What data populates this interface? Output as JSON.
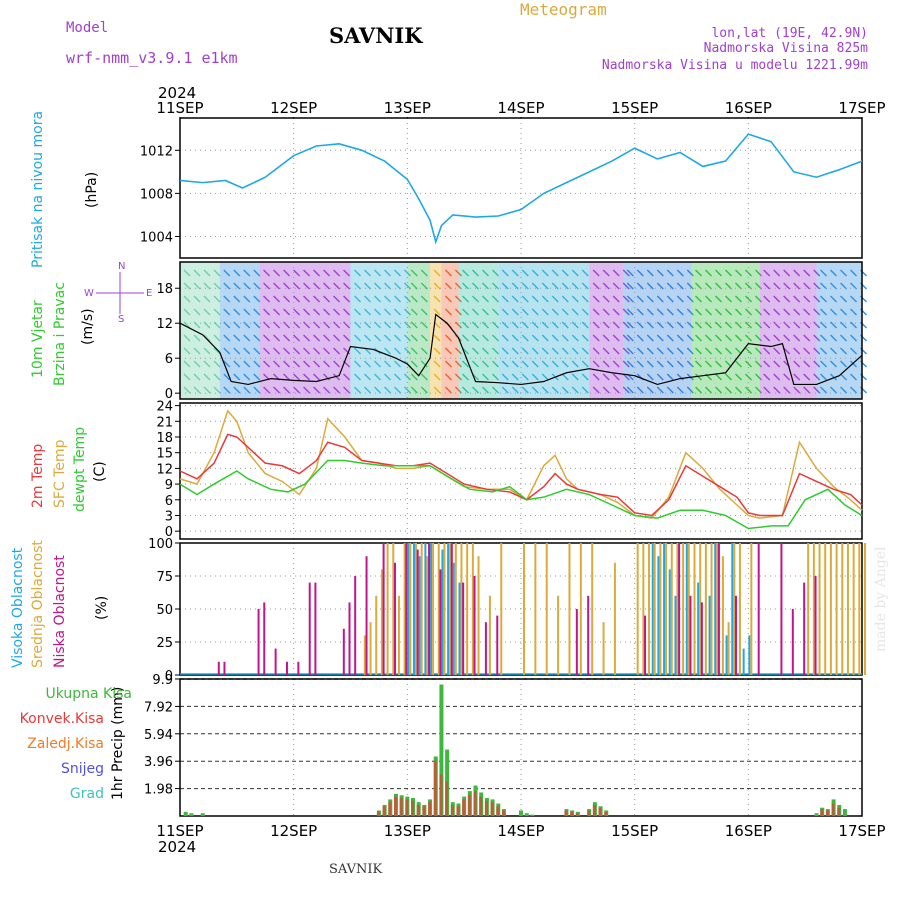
{
  "header": {
    "model_label": "Model",
    "model_name": "wrf-nmm_v3.9.1 e1km",
    "station": "SAVNIK",
    "product": "Meteogram",
    "lonlat": "lon,lat (19E, 42.9N)",
    "elevation": "Nadmorska Visina 825m",
    "model_elevation": "Nadmorska Visina u modelu 1221.99m"
  },
  "footer": {
    "station": "SAVNIK"
  },
  "watermark": "made by Angel",
  "colors": {
    "pressure": "#1fa8e6",
    "temp2m": "#e83a3a",
    "sfc": "#dcaa3c",
    "dewpt": "#2ecc2e",
    "high": "#1fa8e6",
    "mid": "#dcaa3c",
    "low": "#c0158c",
    "total": "#3cb83c",
    "conv": "#e83a3a",
    "frozen": "#f07a28",
    "snow": "#5050e0",
    "grad": "#40c0c0",
    "purple": "#a040d0"
  },
  "time_axis": {
    "year": "2024",
    "ticks": [
      "11SEP",
      "12SEP",
      "13SEP",
      "14SEP",
      "15SEP",
      "16SEP",
      "17SEP"
    ]
  },
  "panels": {
    "pressure": {
      "ylabel": "Pritisak na nivou mora",
      "unit": "(hPa)"
    },
    "wind": {
      "label1": "10m Vjetar",
      "label2": "Brzina i Pravac",
      "unit": "(m/s)",
      "compass": {
        "n": "N",
        "s": "S",
        "e": "E",
        "w": "W"
      }
    },
    "temp": {
      "l1": "2m Temp",
      "l2": "SFC Temp",
      "l3": "dewpt Temp",
      "unit": "(C)"
    },
    "cloud": {
      "l1": "Visoka Oblacnost",
      "l2": "Srednja Oblacnost",
      "l3": "Niska Oblacnost",
      "unit": "(%)"
    },
    "precip": {
      "ylabel": "1hr Precip (mm)",
      "legend": [
        "Ukupna Kisa",
        "Konvek.Kisa",
        "Zaledj.Kisa",
        "Snijeg",
        "Grad"
      ]
    }
  },
  "chart_data": [
    {
      "type": "line",
      "panel": "pressure",
      "x_range_days": [
        0,
        6
      ],
      "ylim": [
        1002,
        1015
      ],
      "yticks": [
        1004,
        1008,
        1012
      ],
      "series": [
        {
          "name": "Pritisak na nivou mora",
          "x": [
            0,
            0.2,
            0.4,
            0.55,
            0.75,
            1.0,
            1.2,
            1.4,
            1.6,
            1.8,
            2.0,
            2.1,
            2.2,
            2.25,
            2.3,
            2.4,
            2.6,
            2.8,
            3.0,
            3.2,
            3.4,
            3.6,
            3.8,
            4.0,
            4.2,
            4.4,
            4.6,
            4.8,
            5.0,
            5.2,
            5.4,
            5.6,
            5.8,
            6.0
          ],
          "values": [
            1009.2,
            1009.0,
            1009.2,
            1008.5,
            1009.5,
            1011.5,
            1012.4,
            1012.6,
            1012.0,
            1011.0,
            1009.3,
            1007.5,
            1005.5,
            1003.5,
            1005.0,
            1006.0,
            1005.8,
            1005.9,
            1006.5,
            1008.0,
            1009.0,
            1010.0,
            1011.0,
            1012.2,
            1011.2,
            1011.8,
            1010.5,
            1011.0,
            1013.5,
            1012.8,
            1010.0,
            1009.5,
            1010.2,
            1011.0
          ]
        }
      ]
    },
    {
      "type": "line",
      "panel": "wind",
      "x_range_days": [
        0,
        6
      ],
      "ylim": [
        -1,
        22.5
      ],
      "yticks": [
        0,
        6,
        12,
        18
      ],
      "series": [
        {
          "name": "10m Vjetar",
          "x": [
            0,
            0.2,
            0.35,
            0.45,
            0.6,
            0.8,
            1.0,
            1.2,
            1.4,
            1.5,
            1.7,
            1.9,
            2.0,
            2.1,
            2.2,
            2.25,
            2.35,
            2.45,
            2.6,
            2.8,
            3.0,
            3.2,
            3.4,
            3.6,
            3.8,
            4.0,
            4.2,
            4.4,
            4.6,
            4.8,
            5.0,
            5.2,
            5.3,
            5.4,
            5.6,
            5.8,
            6.0
          ],
          "values": [
            12,
            10,
            7,
            2,
            1.5,
            2.5,
            2.2,
            2.0,
            3.0,
            8,
            7.5,
            6,
            5,
            3,
            6,
            13.5,
            12,
            9.5,
            2,
            1.8,
            1.5,
            2.0,
            3.5,
            4.2,
            3.5,
            3.0,
            1.5,
            2.5,
            3.0,
            3.5,
            8.5,
            8.0,
            8.5,
            1.5,
            1.5,
            3.0,
            6.5
          ]
        }
      ]
    },
    {
      "type": "line",
      "panel": "temp",
      "x_range_days": [
        0,
        6
      ],
      "ylim": [
        -1.5,
        24.5
      ],
      "yticks": [
        0,
        3,
        6,
        9,
        12,
        15,
        18,
        21,
        24
      ],
      "series": [
        {
          "name": "2m Temp",
          "x": [
            0,
            0.15,
            0.3,
            0.42,
            0.5,
            0.6,
            0.75,
            0.9,
            1.05,
            1.2,
            1.3,
            1.45,
            1.6,
            1.75,
            1.9,
            2.05,
            2.2,
            2.35,
            2.5,
            2.7,
            2.9,
            3.05,
            3.2,
            3.3,
            3.4,
            3.5,
            3.7,
            3.85,
            4.0,
            4.15,
            4.3,
            4.45,
            4.6,
            4.75,
            4.9,
            5.0,
            5.1,
            5.3,
            5.45,
            5.6,
            5.75,
            5.9,
            6.0
          ],
          "values": [
            11.5,
            10,
            13,
            18.5,
            18,
            16,
            13,
            12.5,
            11,
            13.5,
            17,
            16,
            13.5,
            13,
            12.5,
            12.5,
            13,
            11,
            9,
            8,
            7.5,
            6,
            8.5,
            11,
            9,
            8,
            7,
            6.5,
            3.5,
            3,
            6,
            12.5,
            10.5,
            8.5,
            6.5,
            3.5,
            3.0,
            3.0,
            11,
            9.5,
            8,
            7,
            5
          ]
        },
        {
          "name": "SFC Temp",
          "x": [
            0,
            0.15,
            0.3,
            0.42,
            0.5,
            0.6,
            0.75,
            0.9,
            1.05,
            1.2,
            1.3,
            1.45,
            1.6,
            1.75,
            1.9,
            2.05,
            2.2,
            2.35,
            2.5,
            2.7,
            2.9,
            3.05,
            3.2,
            3.3,
            3.4,
            3.5,
            3.7,
            3.85,
            4.0,
            4.15,
            4.3,
            4.45,
            4.6,
            4.75,
            4.9,
            5.0,
            5.1,
            5.3,
            5.45,
            5.6,
            5.75,
            5.9,
            6.0
          ],
          "values": [
            10,
            9,
            15,
            23,
            21,
            15,
            11,
            9.5,
            7,
            12,
            21.5,
            18,
            13.5,
            13,
            12,
            12,
            12.5,
            10.5,
            8.5,
            8,
            8,
            6,
            12.5,
            14.5,
            10,
            8,
            7,
            5.5,
            3,
            2.5,
            6.5,
            15,
            12,
            8,
            5,
            3,
            2.5,
            3.0,
            17,
            12,
            8.5,
            6,
            4
          ]
        },
        {
          "name": "dewpt Temp",
          "x": [
            0,
            0.15,
            0.3,
            0.5,
            0.6,
            0.8,
            0.95,
            1.1,
            1.3,
            1.45,
            1.6,
            1.8,
            2.0,
            2.2,
            2.35,
            2.55,
            2.75,
            2.9,
            3.05,
            3.2,
            3.4,
            3.6,
            3.8,
            4.0,
            4.2,
            4.4,
            4.6,
            4.8,
            5.0,
            5.2,
            5.35,
            5.5,
            5.7,
            5.85,
            6.0
          ],
          "values": [
            9,
            7,
            9,
            11.5,
            10,
            8,
            7.5,
            9,
            13.5,
            13.5,
            13,
            12.5,
            12.5,
            12.5,
            10.5,
            8,
            7.5,
            8.5,
            6,
            6.5,
            8,
            7,
            5,
            3,
            2.5,
            4,
            4,
            3,
            0.5,
            1,
            1.0,
            6,
            8,
            5,
            3
          ]
        }
      ]
    },
    {
      "type": "bar",
      "panel": "cloud",
      "x_range_days": [
        0,
        6
      ],
      "ylim": [
        0,
        100
      ],
      "yticks": [
        0,
        25,
        50,
        75,
        100
      ],
      "series": [
        {
          "name": "Visoka Oblacnost",
          "x": [
            2.0,
            2.05,
            2.1,
            2.15,
            2.2,
            2.3,
            2.35,
            2.4,
            2.45,
            4.15,
            4.2,
            4.25,
            4.3,
            4.35,
            4.45,
            4.55,
            4.65,
            4.7,
            4.8,
            4.85,
            4.95,
            5.0
          ],
          "values": [
            100,
            100,
            90,
            100,
            100,
            95,
            100,
            85,
            70,
            100,
            90,
            100,
            80,
            60,
            100,
            70,
            60,
            100,
            30,
            100,
            20,
            30
          ]
        },
        {
          "name": "Srednja Oblacnost",
          "x": [
            1.6,
            1.65,
            1.7,
            1.75,
            1.8,
            1.85,
            1.9,
            1.95,
            2.0,
            2.05,
            2.1,
            2.15,
            2.2,
            2.25,
            2.3,
            2.35,
            2.4,
            2.45,
            2.5,
            2.55,
            2.6,
            2.7,
            2.8,
            3.0,
            3.1,
            3.2,
            3.3,
            3.4,
            3.5,
            3.6,
            3.7,
            3.8,
            4.0,
            4.05,
            4.1,
            4.15,
            4.2,
            4.25,
            4.3,
            4.35,
            4.4,
            4.45,
            4.5,
            4.55,
            4.6,
            4.65,
            4.7,
            4.75,
            4.8,
            4.85,
            4.9,
            5.0,
            5.5,
            5.55,
            5.6,
            5.65,
            5.7,
            5.75,
            5.8,
            5.85,
            5.9,
            5.95,
            6.0
          ],
          "values": [
            30,
            40,
            60,
            80,
            100,
            100,
            60,
            100,
            100,
            100,
            100,
            90,
            100,
            100,
            100,
            100,
            100,
            100,
            100,
            100,
            90,
            60,
            100,
            100,
            100,
            100,
            60,
            100,
            100,
            100,
            40,
            85,
            100,
            100,
            100,
            100,
            100,
            100,
            100,
            100,
            100,
            100,
            100,
            100,
            100,
            100,
            100,
            90,
            40,
            100,
            100,
            100,
            100,
            100,
            100,
            100,
            100,
            100,
            100,
            100,
            100,
            100,
            100
          ]
        },
        {
          "name": "Niska Oblacnost",
          "x": [
            0.35,
            0.4,
            0.7,
            0.75,
            0.85,
            0.95,
            1.05,
            1.15,
            1.2,
            1.45,
            1.5,
            1.55,
            1.65,
            1.8,
            1.9,
            2.0,
            2.1,
            2.2,
            2.3,
            2.4,
            2.5,
            2.6,
            2.7,
            2.8,
            3.5,
            3.6,
            4.1,
            4.4,
            4.5,
            4.6,
            4.75,
            4.9,
            5.1,
            5.3,
            5.4,
            5.5,
            5.6
          ],
          "values": [
            10,
            10,
            50,
            55,
            20,
            10,
            10,
            70,
            70,
            35,
            55,
            75,
            90,
            100,
            85,
            100,
            95,
            100,
            80,
            100,
            70,
            75,
            40,
            45,
            50,
            60,
            45,
            100,
            60,
            55,
            100,
            60,
            100,
            100,
            50,
            70,
            75
          ]
        }
      ]
    },
    {
      "type": "bar",
      "panel": "precip",
      "x_range_days": [
        0,
        6
      ],
      "ylim": [
        0,
        9.9
      ],
      "yticks": [
        1.98,
        3.96,
        5.94,
        7.92,
        9.9
      ],
      "series": [
        {
          "name": "Ukupna Kisa",
          "x": [
            0.05,
            0.1,
            0.2,
            1.75,
            1.8,
            1.85,
            1.9,
            1.95,
            2.0,
            2.05,
            2.1,
            2.15,
            2.2,
            2.25,
            2.3,
            2.35,
            2.4,
            2.45,
            2.5,
            2.55,
            2.6,
            2.65,
            2.7,
            2.75,
            2.8,
            2.85,
            3.0,
            3.05,
            3.1,
            3.4,
            3.45,
            3.5,
            3.6,
            3.65,
            3.7,
            3.75,
            5.6,
            5.65,
            5.7,
            5.75,
            5.8,
            5.85
          ],
          "values": [
            0.3,
            0.2,
            0.2,
            0.4,
            0.8,
            1.2,
            1.6,
            1.5,
            1.4,
            1.3,
            1.0,
            0.8,
            1.2,
            4.3,
            9.5,
            4.8,
            1.0,
            0.9,
            1.4,
            1.8,
            2.2,
            1.7,
            1.3,
            1.2,
            0.9,
            0.5,
            0.4,
            0.2,
            0.1,
            0.5,
            0.4,
            0.3,
            0.5,
            1.0,
            0.7,
            0.4,
            0.2,
            0.6,
            0.5,
            1.2,
            0.8,
            0.5
          ]
        },
        {
          "name": "Konvek.Kisa",
          "x": [
            1.75,
            1.8,
            1.85,
            1.9,
            1.95,
            2.0,
            2.05,
            2.1,
            2.15,
            2.2,
            2.25,
            2.3,
            2.35,
            2.4,
            2.45,
            2.5,
            2.55,
            2.6,
            2.65,
            2.7,
            2.75,
            2.8,
            2.85,
            3.4,
            3.45,
            3.5,
            3.6,
            3.65,
            3.7,
            3.75,
            5.65,
            5.7,
            5.75,
            5.8
          ],
          "values": [
            0.3,
            0.7,
            1.0,
            1.4,
            1.3,
            1.2,
            1.1,
            0.8,
            0.7,
            1.0,
            4.0,
            3.0,
            2.5,
            0.8,
            0.7,
            1.2,
            1.5,
            1.8,
            1.4,
            1.1,
            1.0,
            0.7,
            0.4,
            0.4,
            0.3,
            0.2,
            0.4,
            0.8,
            0.6,
            0.3,
            0.5,
            0.4,
            0.9,
            0.6
          ]
        }
      ]
    }
  ]
}
